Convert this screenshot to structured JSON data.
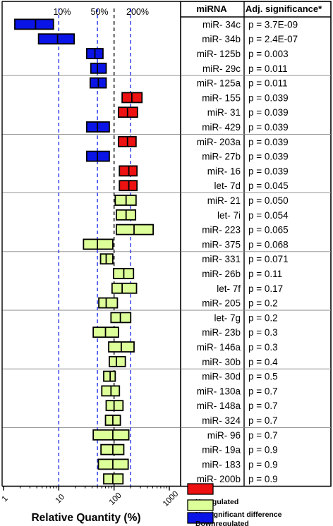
{
  "chart_data": {
    "type": "bar",
    "subtype": "floating-range",
    "x_scale": "log",
    "xlim": [
      1,
      1000
    ],
    "x_ticks": [
      "1",
      "10",
      "100",
      "1000"
    ],
    "xlabel": "Relative Quantity (%)",
    "reference_lines": [
      {
        "value": 10,
        "label": "10%",
        "color": "#2233ee",
        "style": "dashed"
      },
      {
        "value": 50,
        "label": "50%",
        "color": "#2233ee",
        "style": "dashed"
      },
      {
        "value": 100,
        "label": "",
        "color": "#000000",
        "style": "dashed"
      },
      {
        "value": 200,
        "label": "200%",
        "color": "#2233ee",
        "style": "dashed"
      }
    ],
    "table_headers": {
      "mirna": "miRNA",
      "significance": "Adj. significance*"
    },
    "status_colors": {
      "up": "#ee1111",
      "ns": "#ddff99",
      "down": "#0a14e6"
    },
    "legend": [
      {
        "key": "up",
        "label": "Upregulated"
      },
      {
        "key": "ns",
        "label": "No significant difference"
      },
      {
        "key": "down",
        "label": "Downregulated"
      }
    ],
    "legend_position": "bottom-right",
    "rows": [
      {
        "name": "miR- 34c",
        "p": "p = 3.7E-09",
        "low": 1.6,
        "mid": 3.8,
        "high": 8.0,
        "status": "down"
      },
      {
        "name": "miR- 34b",
        "p": "p = 2.4E-07",
        "low": 4.3,
        "mid": 9.5,
        "high": 19,
        "status": "down"
      },
      {
        "name": "miR- 125b",
        "p": "p = 0.003",
        "low": 32,
        "mid": 45,
        "high": 63,
        "status": "down"
      },
      {
        "name": "miR- 29c",
        "p": "p = 0.011",
        "low": 38,
        "mid": 50,
        "high": 72,
        "status": "down"
      },
      {
        "name": "miR- 125a",
        "p": "p = 0.011",
        "low": 37,
        "mid": 52,
        "high": 72,
        "status": "down"
      },
      {
        "name": "miR- 155",
        "p": "p = 0.039",
        "low": 140,
        "mid": 210,
        "high": 320,
        "status": "up"
      },
      {
        "name": "miR- 31",
        "p": "p = 0.039",
        "low": 120,
        "mid": 175,
        "high": 265,
        "status": "up"
      },
      {
        "name": "miR- 429",
        "p": "p = 0.039",
        "low": 32,
        "mid": 50,
        "high": 82,
        "status": "down"
      },
      {
        "name": "miR- 203a",
        "p": "p = 0.039",
        "low": 120,
        "mid": 175,
        "high": 250,
        "status": "up"
      },
      {
        "name": "miR- 27b",
        "p": "p = 0.039",
        "low": 32,
        "mid": 50,
        "high": 82,
        "status": "down"
      },
      {
        "name": "miR- 16",
        "p": "p = 0.039",
        "low": 125,
        "mid": 185,
        "high": 260,
        "status": "up"
      },
      {
        "name": "let- 7d",
        "p": "p = 0.045",
        "low": 125,
        "mid": 185,
        "high": 260,
        "status": "up"
      },
      {
        "name": "miR- 21",
        "p": "p = 0.050",
        "low": 105,
        "mid": 165,
        "high": 250,
        "status": "ns"
      },
      {
        "name": "let- 7i",
        "p": "p = 0.054",
        "low": 110,
        "mid": 165,
        "high": 245,
        "status": "ns"
      },
      {
        "name": "miR- 223",
        "p": "p = 0.065",
        "low": 110,
        "mid": 230,
        "high": 510,
        "status": "ns"
      },
      {
        "name": "miR- 375",
        "p": "p = 0.068",
        "low": 28,
        "mid": 50,
        "high": 95,
        "status": "ns"
      },
      {
        "name": "miR- 331",
        "p": "p = 0.071",
        "low": 57,
        "mid": 72,
        "high": 95,
        "status": "ns"
      },
      {
        "name": "miR- 26b",
        "p": "p = 0.11",
        "low": 98,
        "mid": 150,
        "high": 225,
        "status": "ns"
      },
      {
        "name": "let- 7f",
        "p": "p = 0.17",
        "low": 92,
        "mid": 140,
        "high": 255,
        "status": "ns"
      },
      {
        "name": "miR- 205",
        "p": "p = 0.2",
        "low": 53,
        "mid": 72,
        "high": 115,
        "status": "ns"
      },
      {
        "name": "let- 7g",
        "p": "p = 0.2",
        "low": 88,
        "mid": 130,
        "high": 200,
        "status": "ns"
      },
      {
        "name": "miR- 23b",
        "p": "p = 0.3",
        "low": 42,
        "mid": 70,
        "high": 120,
        "status": "ns"
      },
      {
        "name": "miR- 146a",
        "p": "p = 0.3",
        "low": 80,
        "mid": 135,
        "high": 230,
        "status": "ns"
      },
      {
        "name": "miR- 30b",
        "p": "p = 0.4",
        "low": 82,
        "mid": 110,
        "high": 160,
        "status": "ns"
      },
      {
        "name": "miR- 30d",
        "p": "p = 0.5",
        "low": 65,
        "mid": 85,
        "high": 105,
        "status": "ns"
      },
      {
        "name": "miR- 130a",
        "p": "p = 0.7",
        "low": 60,
        "mid": 88,
        "high": 125,
        "status": "ns"
      },
      {
        "name": "miR- 148a",
        "p": "p = 0.7",
        "low": 72,
        "mid": 100,
        "high": 145,
        "status": "ns"
      },
      {
        "name": "miR- 324",
        "p": "p = 0.7",
        "low": 70,
        "mid": 95,
        "high": 130,
        "status": "ns"
      },
      {
        "name": "miR- 96",
        "p": "p = 0.7",
        "low": 42,
        "mid": 95,
        "high": 185,
        "status": "ns"
      },
      {
        "name": "miR- 19a",
        "p": "p = 0.9",
        "low": 58,
        "mid": 95,
        "high": 150,
        "status": "ns"
      },
      {
        "name": "miR- 183",
        "p": "p = 0.9",
        "low": 52,
        "mid": 95,
        "high": 180,
        "status": "ns"
      },
      {
        "name": "miR- 200b",
        "p": "p = 0.9",
        "low": 65,
        "mid": 95,
        "high": 145,
        "status": "ns"
      }
    ]
  }
}
